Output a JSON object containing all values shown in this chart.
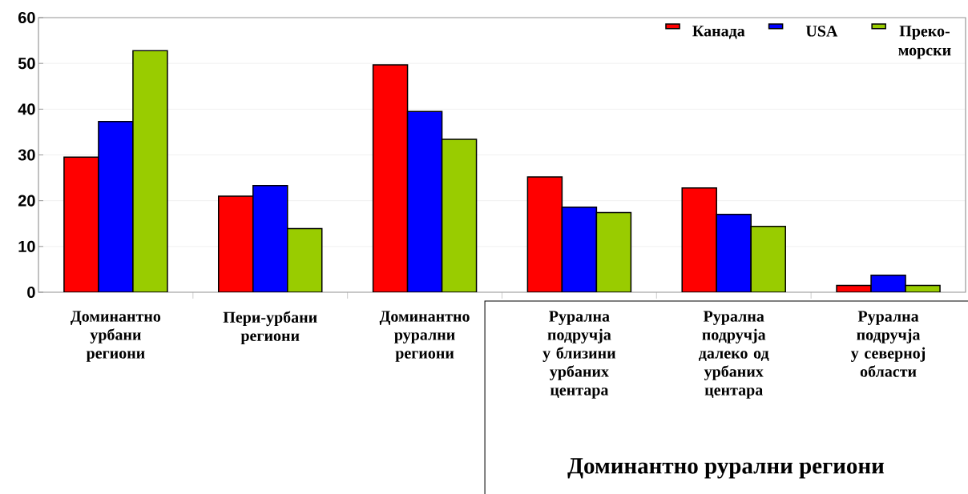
{
  "chart_data": {
    "type": "bar",
    "categories": [
      "Доминантно урбани региони",
      "Пери-урбани региони",
      "Доминантно рурални региони",
      "Рурална подручја у близини урбаних центара",
      "Рурална подручја далеко од урбаних центара",
      "Рурална подручја у северној области"
    ],
    "series": [
      {
        "name": "Канада",
        "color": "#ff0000",
        "values": [
          29.5,
          21,
          49.7,
          25.2,
          22.8,
          1.5
        ]
      },
      {
        "name": "USA",
        "color": "#0000ff",
        "values": [
          37.3,
          23.3,
          39.5,
          18.6,
          17,
          3.7
        ]
      },
      {
        "name": "Преко-морски",
        "color": "#99cc00",
        "values": [
          52.8,
          13.9,
          33.4,
          17.4,
          14.4,
          1.5
        ]
      }
    ],
    "ylim": [
      0,
      60
    ],
    "yticks": [
      0,
      10,
      20,
      30,
      40,
      50,
      60
    ],
    "grid": "y",
    "legend": "top right",
    "annotations": [
      "Доминантно рурални региони"
    ]
  }
}
